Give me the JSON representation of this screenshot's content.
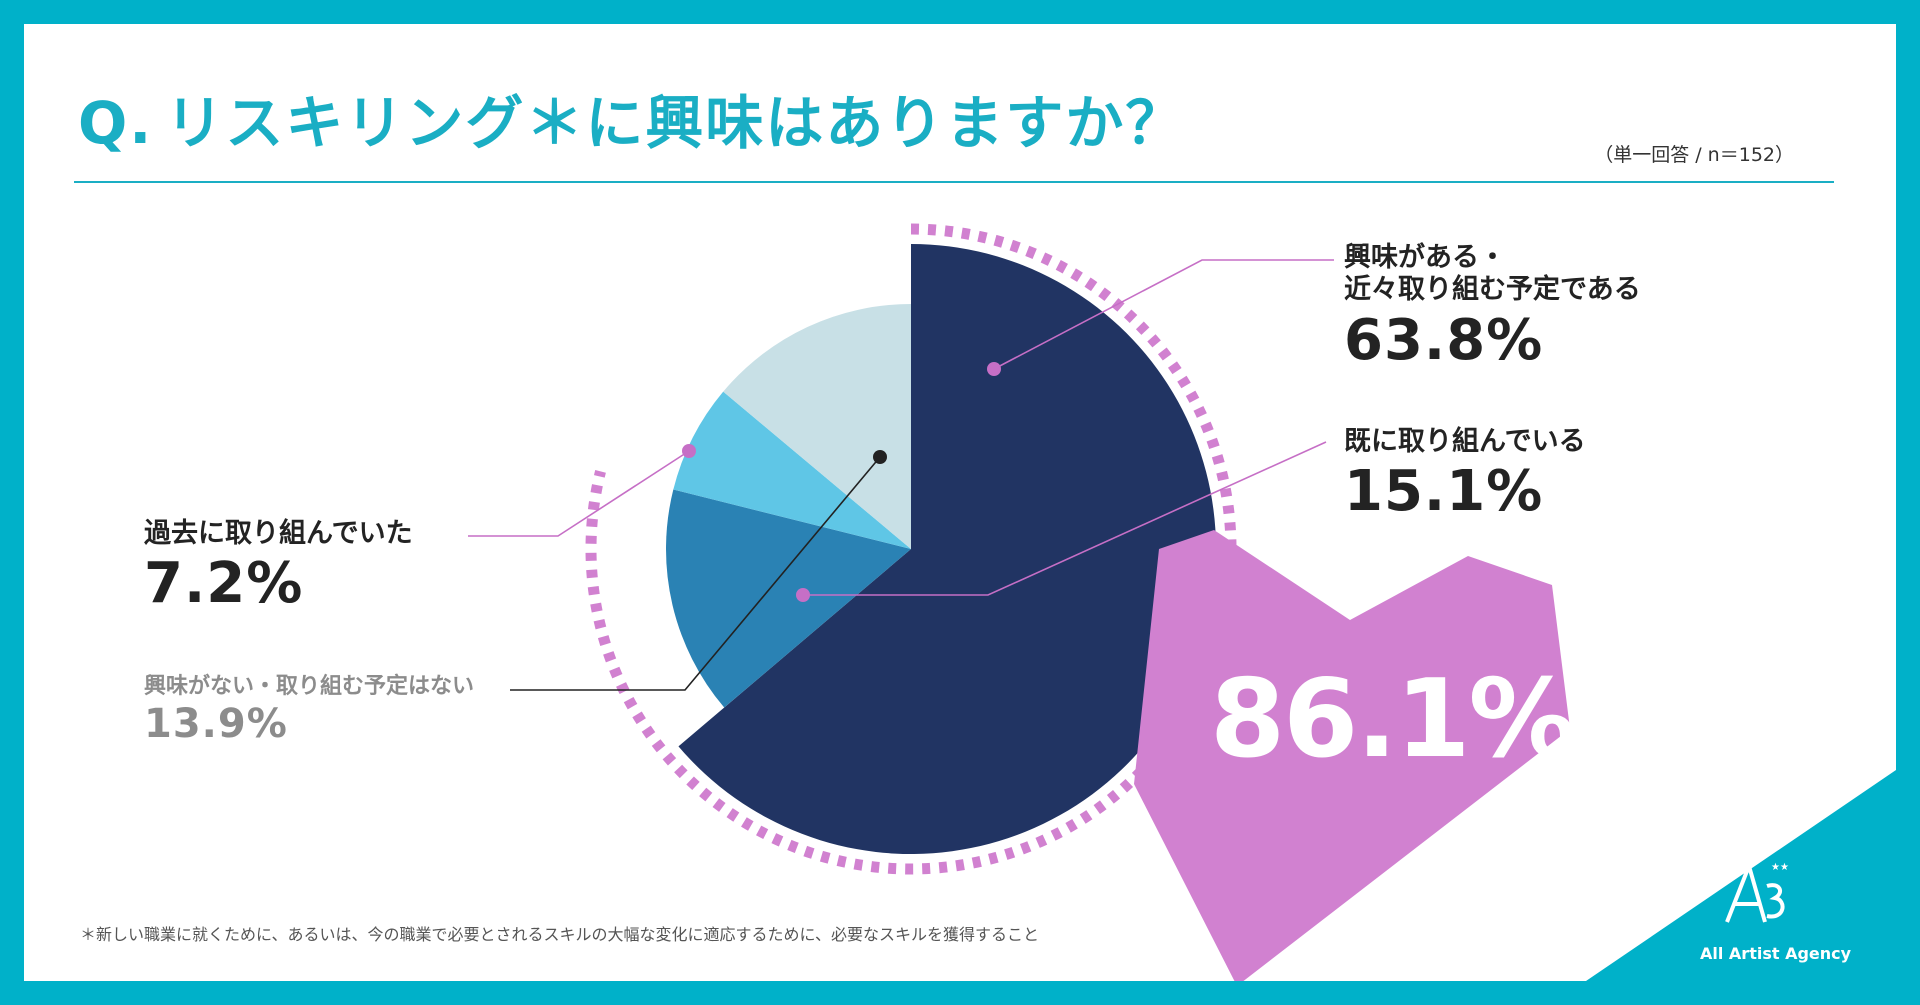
{
  "title": {
    "prefix": "Q.",
    "text": "リスキリング＊に興味はありますか？"
  },
  "meta": "（単一回答 / n＝152）",
  "chart_data": {
    "type": "pie",
    "slices": [
      {
        "label": "興味がある・近々取り組む予定である",
        "label_lines": [
          "興味がある・",
          "近々取り組む予定である"
        ],
        "value": 63.8,
        "display": "63.8%",
        "color": "#213463"
      },
      {
        "label": "既に取り組んでいる",
        "label_lines": [
          "既に取り組んでいる"
        ],
        "value": 15.1,
        "display": "15.1%",
        "color": "#2a82b4"
      },
      {
        "label": "過去に取り組んでいた",
        "label_lines": [
          "過去に取り組んでいた"
        ],
        "value": 7.2,
        "display": "7.2%",
        "color": "#5fc6e6"
      },
      {
        "label": "興味がない・取り組む予定はない",
        "label_lines": [
          "興味がない・取り組む予定はない"
        ],
        "value": 13.9,
        "display": "13.9%",
        "color": "#c8e0e6"
      }
    ],
    "highlight": {
      "value": 86.1,
      "display": "86.1%",
      "color": "#d181d0"
    }
  },
  "footnote": "＊新しい職業に就くために、あるいは、今の職業で必要とされるスキルの大幅な変化に適応するために、必要なスキルを獲得すること",
  "logo": {
    "mark": "A3",
    "name": "All Artist Agency"
  },
  "colors": {
    "frame": "#00b1c9",
    "accent": "#1aaec4",
    "highlight": "#d181d0"
  }
}
